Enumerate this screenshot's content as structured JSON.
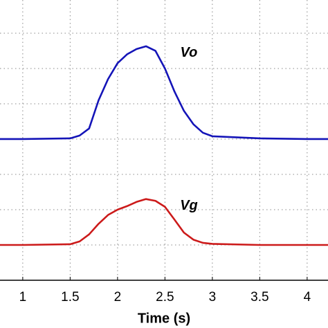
{
  "chart_data": {
    "type": "line",
    "xlabel": "Time (s)",
    "x": [
      0.76,
      1.0,
      1.5,
      1.6,
      1.7,
      1.8,
      1.9,
      2.0,
      2.1,
      2.2,
      2.3,
      2.4,
      2.5,
      2.6,
      2.7,
      2.8,
      2.9,
      3.0,
      3.5,
      4.0,
      4.22
    ],
    "series": [
      {
        "name": "Vo",
        "color": "#1414b8",
        "values": [
          4.0,
          4.0,
          4.02,
          4.1,
          4.3,
          5.1,
          5.7,
          6.15,
          6.4,
          6.55,
          6.63,
          6.5,
          6.0,
          5.35,
          4.8,
          4.42,
          4.18,
          4.08,
          4.02,
          4.0,
          4.0
        ]
      },
      {
        "name": "Vg",
        "color": "#cc1a1a",
        "values": [
          1.0,
          1.0,
          1.02,
          1.1,
          1.3,
          1.6,
          1.85,
          2.0,
          2.1,
          2.22,
          2.3,
          2.25,
          2.08,
          1.72,
          1.35,
          1.15,
          1.06,
          1.03,
          1.0,
          1.0,
          1.0
        ]
      }
    ],
    "xlim": [
      0.76,
      4.22
    ],
    "xticks": [
      1,
      1.5,
      2,
      2.5,
      3,
      3.5,
      4
    ],
    "ylim": [
      0,
      7.94
    ],
    "yticks": [
      1,
      2,
      3,
      4,
      5,
      6,
      7
    ],
    "grid": true
  }
}
